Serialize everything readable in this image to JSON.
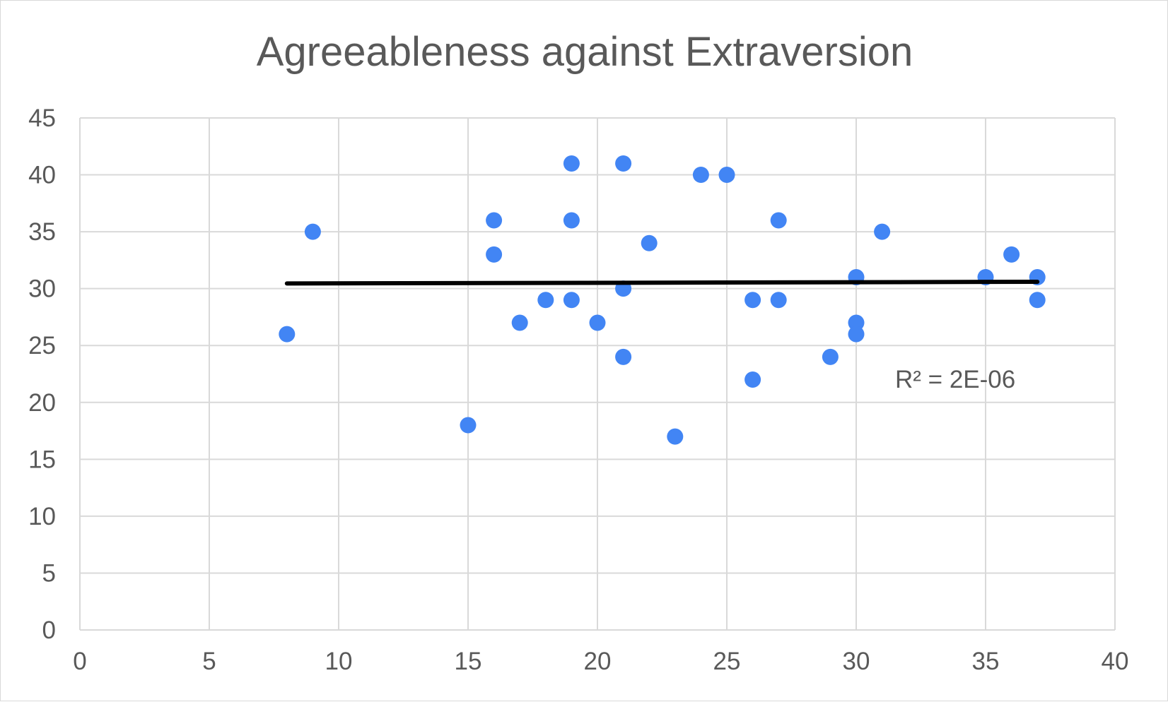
{
  "chart_data": {
    "type": "scatter",
    "title": "Agreeableness against Extraversion",
    "xlabel": "",
    "ylabel": "",
    "xlim": [
      0,
      40
    ],
    "ylim": [
      0,
      45
    ],
    "x_ticks": [
      "0",
      "5",
      "10",
      "15",
      "20",
      "25",
      "30",
      "35",
      "40"
    ],
    "y_ticks": [
      "0",
      "5",
      "10",
      "15",
      "20",
      "25",
      "30",
      "35",
      "40",
      "45"
    ],
    "grid": true,
    "legend": "none",
    "point_color": "#4285f4",
    "series": [
      {
        "points": [
          {
            "x": 8,
            "y": 26
          },
          {
            "x": 9,
            "y": 35
          },
          {
            "x": 15,
            "y": 18
          },
          {
            "x": 16,
            "y": 36
          },
          {
            "x": 16,
            "y": 33
          },
          {
            "x": 17,
            "y": 27
          },
          {
            "x": 18,
            "y": 29
          },
          {
            "x": 19,
            "y": 41
          },
          {
            "x": 19,
            "y": 36
          },
          {
            "x": 19,
            "y": 29
          },
          {
            "x": 20,
            "y": 27
          },
          {
            "x": 21,
            "y": 41
          },
          {
            "x": 21,
            "y": 30
          },
          {
            "x": 21,
            "y": 24
          },
          {
            "x": 22,
            "y": 34
          },
          {
            "x": 23,
            "y": 17
          },
          {
            "x": 24,
            "y": 40
          },
          {
            "x": 25,
            "y": 40
          },
          {
            "x": 26,
            "y": 29
          },
          {
            "x": 26,
            "y": 22
          },
          {
            "x": 27,
            "y": 36
          },
          {
            "x": 27,
            "y": 29
          },
          {
            "x": 29,
            "y": 24
          },
          {
            "x": 30,
            "y": 31
          },
          {
            "x": 30,
            "y": 27
          },
          {
            "x": 30,
            "y": 26
          },
          {
            "x": 31,
            "y": 35
          },
          {
            "x": 35,
            "y": 31
          },
          {
            "x": 36,
            "y": 33
          },
          {
            "x": 37,
            "y": 31
          },
          {
            "x": 37,
            "y": 29
          }
        ]
      }
    ],
    "trendline": {
      "type": "linear",
      "color": "#000000",
      "x_start": 8,
      "y_start": 30.45,
      "x_end": 37,
      "y_end": 30.6,
      "r_squared_label": "R² = 2E-06"
    }
  }
}
